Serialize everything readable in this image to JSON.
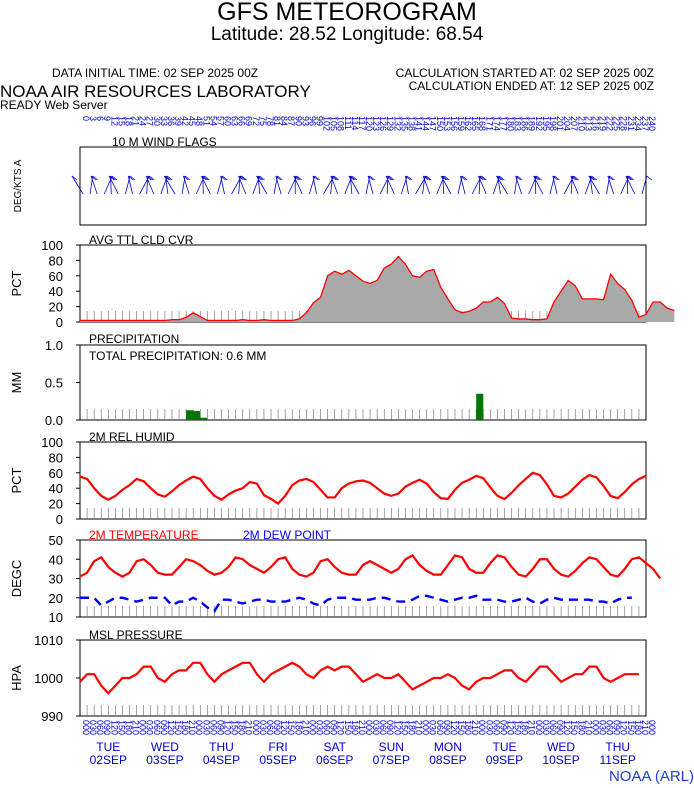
{
  "header": {
    "title": "GFS METEOROGRAM",
    "subtitle": "Latitude: 28.52 Longitude:  68.54",
    "init_time": "DATA INITIAL TIME: 02 SEP 2025 00Z",
    "calc_started": "CALCULATION STARTED AT: 02 SEP 2025 00Z",
    "calc_ended": "CALCULATION ENDED AT: 12 SEP 2025 00Z",
    "lab": "NOAA AIR RESOURCES LABORATORY",
    "server": "READY Web Server"
  },
  "footer": {
    "credit": "NOAA (ARL)"
  },
  "colors": {
    "temperature": "#ff0000",
    "dewpoint": "#0000ff",
    "rh": "#ff0000",
    "pressure": "#ff0000",
    "cloud_fill": "#a9a9a9",
    "precip": "#007700",
    "axis_text": "#0000cc"
  },
  "chart_data": [
    {
      "type": "line",
      "name": "wind",
      "title": "10 M  WIND FLAGS",
      "ylabel": "DEG/KTS  A",
      "note": "wind barbs; values not printed"
    },
    {
      "type": "area",
      "name": "cloud",
      "title": "AVG TTL CLD CVR",
      "ylabel": "PCT",
      "ylim": [
        0,
        100
      ],
      "yticks": [
        0,
        20,
        40,
        60,
        80,
        100
      ],
      "values": [
        2,
        2,
        2,
        2,
        2,
        2,
        2,
        2,
        2,
        2,
        2,
        2,
        2,
        3,
        3,
        6,
        12,
        7,
        2,
        2,
        2,
        2,
        2,
        3,
        2,
        2,
        3,
        2,
        2,
        2,
        2,
        4,
        12,
        25,
        32,
        60,
        66,
        62,
        67,
        60,
        53,
        50,
        54,
        70,
        75,
        85,
        75,
        60,
        58,
        66,
        68,
        45,
        30,
        16,
        12,
        14,
        18,
        26,
        26,
        32,
        24,
        5,
        4,
        4,
        3,
        3,
        4,
        26,
        40,
        54,
        47,
        30,
        30,
        30,
        29,
        62,
        50,
        42,
        28,
        6,
        10,
        26,
        26,
        18,
        15
      ],
      "grid": true
    },
    {
      "type": "bar",
      "name": "precip",
      "title": "PRECIPITATION",
      "annotation": "TOTAL PRECIPITATION:   0.6 MM",
      "ylabel": "MM",
      "ylim": [
        0,
        1.0
      ],
      "yticks": [
        0.0,
        0.5,
        1.0
      ],
      "ytick_labels": [
        "0.0",
        "0.5",
        "1.0"
      ],
      "bars": [
        {
          "i": 15,
          "v": 0.13
        },
        {
          "i": 16,
          "v": 0.12
        },
        {
          "i": 17,
          "v": 0.03
        },
        {
          "i": 56,
          "v": 0.35
        }
      ],
      "grid": true
    },
    {
      "type": "line",
      "name": "rh",
      "title": "2M REL HUMID",
      "ylabel": "PCT",
      "ylim": [
        0,
        100
      ],
      "yticks": [
        0,
        20,
        40,
        60,
        80,
        100
      ],
      "values": [
        55,
        52,
        40,
        30,
        25,
        30,
        38,
        44,
        52,
        49,
        40,
        32,
        29,
        36,
        44,
        50,
        55,
        52,
        40,
        30,
        25,
        32,
        37,
        40,
        48,
        46,
        31,
        26,
        20,
        30,
        44,
        50,
        52,
        48,
        38,
        28,
        28,
        40,
        46,
        49,
        50,
        47,
        40,
        33,
        30,
        33,
        42,
        47,
        51,
        46,
        35,
        27,
        26,
        38,
        47,
        51,
        56,
        53,
        41,
        30,
        26,
        34,
        44,
        52,
        60,
        57,
        45,
        30,
        28,
        33,
        42,
        51,
        57,
        54,
        43,
        30,
        27,
        35,
        45,
        52,
        56
      ]
    },
    {
      "type": "line",
      "name": "temp",
      "title": "2M TEMPERATURE",
      "ylabel": "DEGC",
      "ylim": [
        10,
        50
      ],
      "yticks": [
        10,
        20,
        30,
        40,
        50
      ],
      "series": [
        {
          "name": "2M TEMPERATURE",
          "values": [
            31,
            33,
            39,
            41,
            36,
            33,
            31,
            33,
            39,
            40,
            37,
            33,
            32,
            32,
            36,
            40,
            39,
            37,
            34,
            32,
            33,
            36,
            41,
            40,
            37,
            35,
            33,
            36,
            40,
            41,
            35,
            32,
            31,
            33,
            39,
            40,
            36,
            33,
            32,
            32,
            37,
            39,
            37,
            35,
            33,
            35,
            40,
            42,
            37,
            34,
            32,
            32,
            37,
            42,
            41,
            35,
            33,
            33,
            38,
            42,
            41,
            36,
            32,
            31,
            35,
            40,
            40,
            35,
            32,
            31,
            34,
            38,
            41,
            40,
            36,
            32,
            31,
            35,
            40,
            41,
            38,
            35,
            30
          ]
        },
        {
          "name": "2M   DEW POINT",
          "values": [
            20,
            20,
            20,
            16,
            18,
            20,
            20,
            19,
            18,
            19,
            20,
            20,
            20,
            16,
            18,
            18,
            20,
            18,
            15,
            13,
            19,
            19,
            18,
            17,
            18,
            19,
            19,
            18,
            18,
            18,
            19,
            20,
            19,
            17,
            16,
            19,
            20,
            20,
            20,
            19,
            19,
            19,
            20,
            20,
            19,
            18,
            18,
            19,
            21,
            21,
            20,
            19,
            18,
            19,
            20,
            20,
            21,
            19,
            19,
            19,
            18,
            18,
            19,
            20,
            18,
            17,
            19,
            20,
            19,
            19,
            19,
            19,
            19,
            18,
            18,
            17,
            19,
            20,
            20
          ]
        }
      ]
    },
    {
      "type": "line",
      "name": "pressure",
      "title": "MSL PRESSURE",
      "ylabel": "HPA",
      "ylim": [
        990,
        1010
      ],
      "yticks": [
        990,
        1000,
        1010
      ],
      "values": [
        999,
        1001,
        1001,
        998,
        996,
        998,
        1000,
        1000,
        1001,
        1003,
        1003,
        1000,
        999,
        1001,
        1002,
        1002,
        1004,
        1004,
        1001,
        999,
        1001,
        1002,
        1003,
        1004,
        1004,
        1001,
        999,
        1001,
        1002,
        1003,
        1004,
        1003,
        1001,
        1000,
        1002,
        1003,
        1002,
        1003,
        1003,
        1001,
        999,
        1000,
        1001,
        1000,
        1000,
        1001,
        999,
        997,
        998,
        999,
        1000,
        1000,
        1001,
        1000,
        998,
        997,
        999,
        1000,
        1000,
        1001,
        1002,
        1002,
        1000,
        999,
        1001,
        1003,
        1003,
        1001,
        999,
        1000,
        1001,
        1001,
        1003,
        1003,
        1000,
        999,
        1000,
        1001,
        1001,
        1001
      ]
    }
  ],
  "x_axis": {
    "hours": [
      "00",
      "03",
      "06",
      "09",
      "12",
      "15",
      "18",
      "21"
    ],
    "days": [
      {
        "weekday": "TUE",
        "date": "02SEP"
      },
      {
        "weekday": "WED",
        "date": "03SEP"
      },
      {
        "weekday": "THU",
        "date": "04SEP"
      },
      {
        "weekday": "FRI",
        "date": "05SEP"
      },
      {
        "weekday": "SAT",
        "date": "06SEP"
      },
      {
        "weekday": "SUN",
        "date": "07SEP"
      },
      {
        "weekday": "MON",
        "date": "08SEP"
      },
      {
        "weekday": "TUE",
        "date": "09SEP"
      },
      {
        "weekday": "WED",
        "date": "10SEP"
      },
      {
        "weekday": "THU",
        "date": "11SEP"
      }
    ]
  }
}
